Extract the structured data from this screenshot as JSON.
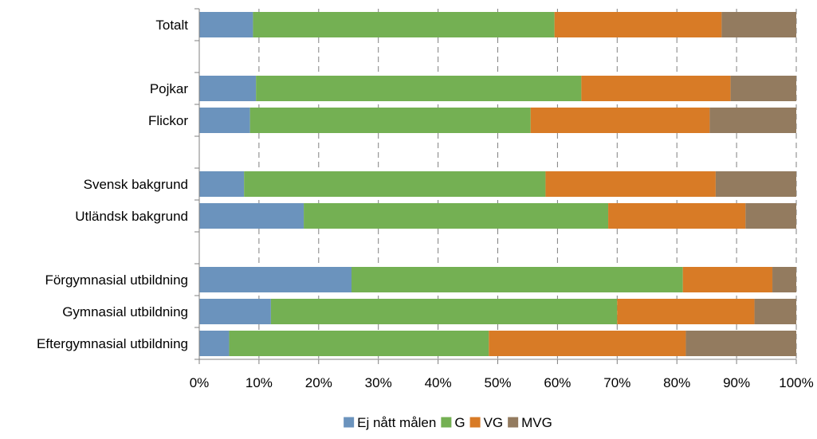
{
  "chart_data": {
    "type": "bar",
    "orientation": "horizontal",
    "stacked": "percent",
    "categories": [
      "Totalt",
      "",
      "Pojkar",
      "Flickor",
      "",
      "Svensk bakgrund",
      "Utländsk bakgrund",
      "",
      "Förgymnasial utbildning",
      "Gymnasial utbildning",
      "Eftergymnasial utbildning"
    ],
    "series": [
      {
        "name": "Ej nått målen",
        "color": "#6b93bd",
        "values": [
          9.0,
          null,
          9.5,
          8.5,
          null,
          7.5,
          17.5,
          null,
          25.5,
          12.0,
          5.0
        ]
      },
      {
        "name": "G",
        "color": "#74b053",
        "values": [
          50.5,
          null,
          54.5,
          47.0,
          null,
          50.5,
          51.0,
          null,
          55.5,
          58.0,
          43.5
        ]
      },
      {
        "name": "VG",
        "color": "#d87b26",
        "values": [
          28.0,
          null,
          25.0,
          30.0,
          null,
          28.5,
          23.0,
          null,
          15.0,
          23.0,
          33.0
        ]
      },
      {
        "name": "MVG",
        "color": "#937b5f",
        "values": [
          12.5,
          null,
          11.0,
          14.5,
          null,
          13.5,
          8.5,
          null,
          4.0,
          7.0,
          18.5
        ]
      }
    ],
    "xlim": [
      0,
      100
    ],
    "x_ticks": [
      "0%",
      "10%",
      "20%",
      "30%",
      "40%",
      "50%",
      "60%",
      "70%",
      "80%",
      "90%",
      "100%"
    ],
    "grid": "vertical-dashed",
    "legend_position": "bottom"
  }
}
